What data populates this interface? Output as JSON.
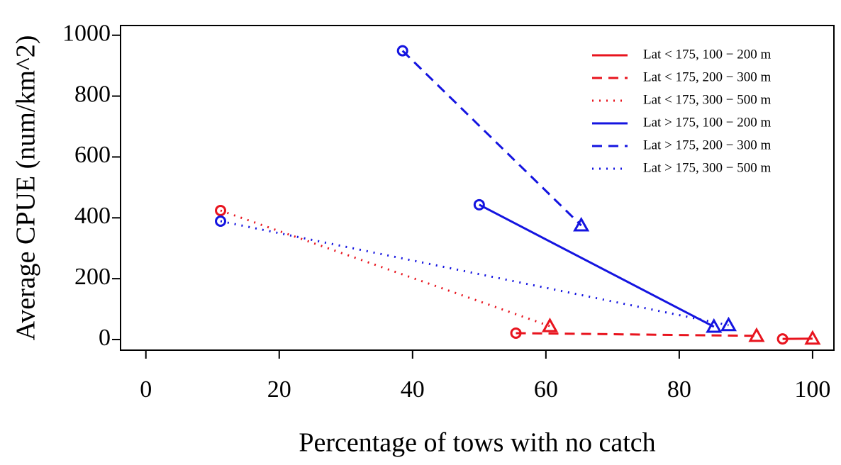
{
  "chart_data": {
    "type": "line",
    "xlabel": "Percentage of tows with no catch",
    "ylabel": "Average CPUE (num/km^2)",
    "xlim": [
      -3.8,
      103.2
    ],
    "ylim": [
      -35,
      1032
    ],
    "xticks": [
      0,
      20,
      40,
      60,
      80,
      100
    ],
    "yticks": [
      0,
      200,
      400,
      600,
      800,
      1000
    ],
    "legend": "topright",
    "series": [
      {
        "name": "Lat < 175, 100 − 200 m",
        "color": "#e8141e",
        "dash": "solid",
        "x": [
          95.5,
          100
        ],
        "values": [
          2,
          3
        ]
      },
      {
        "name": "Lat < 175, 200 − 300 m",
        "color": "#e8141e",
        "dash": "dashed",
        "x": [
          55.5,
          91.6
        ],
        "values": [
          21,
          12
        ]
      },
      {
        "name": "Lat < 175, 300 − 500 m",
        "color": "#e8141e",
        "dash": "dotted",
        "x": [
          11.2,
          60.6
        ],
        "values": [
          424,
          44
        ]
      },
      {
        "name": "Lat > 175, 100 − 200 m",
        "color": "#1414e0",
        "dash": "solid",
        "x": [
          50,
          85.2
        ],
        "values": [
          443,
          42
        ]
      },
      {
        "name": "Lat > 175, 200 − 300 m",
        "color": "#1414e0",
        "dash": "dashed",
        "x": [
          38.5,
          65.3
        ],
        "values": [
          949,
          375
        ]
      },
      {
        "name": "Lat > 175, 300 − 500 m",
        "color": "#1414e0",
        "dash": "dotted",
        "x": [
          11.2,
          87.4
        ],
        "values": [
          389,
          47
        ]
      }
    ]
  }
}
